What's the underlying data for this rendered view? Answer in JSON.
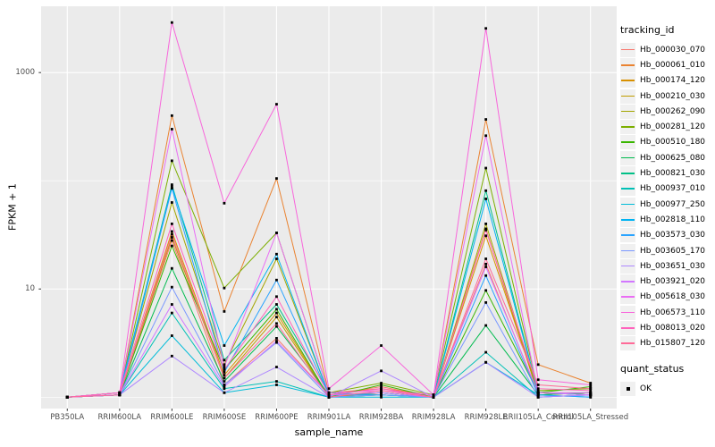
{
  "figure": {
    "ylabel": "FPKM + 1",
    "xlabel": "sample_name",
    "panel_bg": "#EBEBEB",
    "grid_color": "#FFFFFF",
    "tick_color": "#333333",
    "tick_label_color": "#4D4D4D",
    "axis_title_color": "#000000"
  },
  "legend": {
    "tracking_title": "tracking_id",
    "quant_title": "quant_status",
    "quant_label": "OK",
    "key_bg": "#F0F0F0",
    "marker_color": "#000000"
  },
  "chart_data": {
    "type": "line",
    "x_axis_label": "sample_name",
    "y_axis_label": "FPKM + 1",
    "y_scale": "log10",
    "ylim": [
      0.785,
      4100
    ],
    "y_ticks": [
      {
        "label": "1000",
        "value": 1000
      },
      {
        "label": "10",
        "value": 10
      }
    ],
    "y_major_gridlines": [
      10,
      1000
    ],
    "y_minor_gridlines": [
      1,
      100
    ],
    "grid": true,
    "legend_position": "right",
    "point_marker": "filled-square",
    "quant_status": "OK",
    "x_categories": [
      "PB350LA",
      "RRIM600LA",
      "RRIM600LE",
      "RRIM600SE",
      "RRIM600PE",
      "RRIM901LA",
      "RRIM928BA",
      "RRIM928LA",
      "RRIM928LE",
      "RRII105LA_Control",
      "RRII105LA_Stressed"
    ],
    "series": [
      {
        "name": "Hb_000030_070",
        "color": "#F8766D",
        "values": [
          1,
          1.05,
          28,
          1.3,
          3.5,
          1.05,
          1.25,
          1,
          17,
          1.05,
          1.1
        ]
      },
      {
        "name": "Hb_000061_010",
        "color": "#EA8331",
        "values": [
          1,
          1.1,
          400,
          6.2,
          105,
          1.1,
          1.2,
          1.05,
          369,
          2.0,
          1.35
        ]
      },
      {
        "name": "Hb_000174_120",
        "color": "#D89000",
        "values": [
          1,
          1.05,
          34,
          1.6,
          6.0,
          1,
          1.1,
          1,
          31,
          1.1,
          1.05
        ]
      },
      {
        "name": "Hb_000210_030",
        "color": "#C09B00",
        "values": [
          1,
          1.05,
          30,
          1.5,
          5.5,
          1,
          1.05,
          1,
          36,
          1.05,
          1.1
        ]
      },
      {
        "name": "Hb_000262_090",
        "color": "#A3A500",
        "values": [
          1,
          1.1,
          63,
          2.0,
          19,
          1.05,
          1.1,
          1,
          40,
          1.1,
          1.05
        ]
      },
      {
        "name": "Hb_000281_120",
        "color": "#7CAE00",
        "values": [
          1,
          1.1,
          153,
          10.2,
          33,
          1.1,
          1.35,
          1.05,
          131,
          1.15,
          1.2
        ]
      },
      {
        "name": "Hb_000510_180",
        "color": "#39B600",
        "values": [
          1,
          1.05,
          25,
          1.8,
          6.5,
          1,
          1.3,
          1,
          9.7,
          1.1,
          1.25
        ]
      },
      {
        "name": "Hb_000625_080",
        "color": "#00BB4E",
        "values": [
          1,
          1.05,
          15.5,
          1.4,
          4.5,
          1.05,
          1.1,
          1,
          4.6,
          1.05,
          1.1
        ]
      },
      {
        "name": "Hb_000821_030",
        "color": "#00C087",
        "values": [
          1,
          1.1,
          92,
          2.2,
          7.2,
          1.1,
          1.05,
          1,
          81,
          1.1,
          1.05
        ]
      },
      {
        "name": "Hb_000937_010",
        "color": "#00C0B5",
        "values": [
          1,
          1.05,
          6.0,
          1.2,
          1.4,
          1,
          1.05,
          1,
          2.6,
          1,
          1.05
        ]
      },
      {
        "name": "Hb_000977_250",
        "color": "#00BCD8",
        "values": [
          1,
          1.05,
          3.7,
          1.1,
          1.3,
          1,
          1,
          1,
          2.1,
          1.05,
          1
        ]
      },
      {
        "name": "Hb_002818_110",
        "color": "#00B3F2",
        "values": [
          1,
          1.1,
          88,
          3.0,
          21,
          1.05,
          1.1,
          1,
          68,
          1.1,
          1.05
        ]
      },
      {
        "name": "Hb_003573_030",
        "color": "#29A3FF",
        "values": [
          1,
          1.05,
          85,
          1.7,
          12.1,
          1.05,
          1.05,
          1,
          13.3,
          1.05,
          1
        ]
      },
      {
        "name": "Hb_003605_170",
        "color": "#7997FF",
        "values": [
          1,
          1.05,
          10.4,
          1.3,
          3.2,
          1,
          1.05,
          1,
          7.5,
          1,
          1.05
        ]
      },
      {
        "name": "Hb_003651_030",
        "color": "#AE87FF",
        "values": [
          1,
          1.05,
          2.4,
          1.1,
          1.9,
          1,
          1.75,
          1,
          2.1,
          1,
          1.05
        ]
      },
      {
        "name": "Hb_003921_020",
        "color": "#D277FF",
        "values": [
          1,
          1.05,
          7.2,
          1.25,
          3.3,
          1.05,
          1.1,
          1,
          16,
          1.1,
          1.05
        ]
      },
      {
        "name": "Hb_005618_030",
        "color": "#EA6EF4",
        "values": [
          1,
          1.1,
          300,
          1.9,
          33,
          1.1,
          1.15,
          1.05,
          261,
          1.1,
          1.1
        ]
      },
      {
        "name": "Hb_006573_110",
        "color": "#F866DB",
        "values": [
          1,
          1.1,
          2900,
          62,
          510,
          1.2,
          3.0,
          1.05,
          2560,
          1.45,
          1.3
        ]
      },
      {
        "name": "Hb_008013_020",
        "color": "#FF62BC",
        "values": [
          1,
          1.1,
          40,
          1.8,
          8.5,
          1.05,
          1.2,
          1,
          35,
          1.2,
          1.15
        ]
      },
      {
        "name": "Hb_015807_120",
        "color": "#FF6A98",
        "values": [
          1,
          1.05,
          32,
          1.5,
          4.8,
          1,
          1.15,
          1,
          19,
          1.3,
          1.2
        ]
      }
    ]
  }
}
